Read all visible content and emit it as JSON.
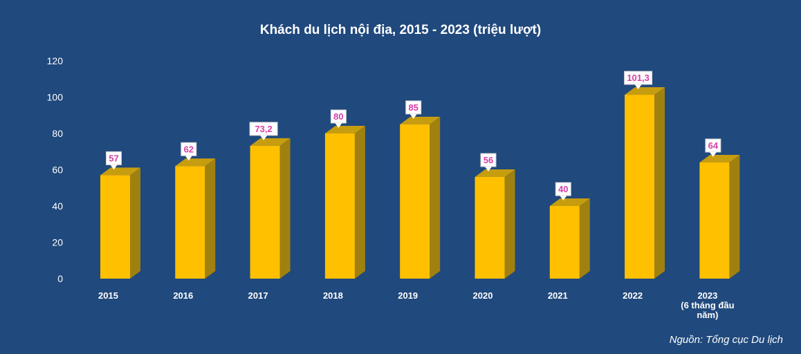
{
  "chart_data": {
    "type": "bar",
    "title": "Khách du lịch nội địa, 2015 - 2023 (triệu lượt)",
    "categories": [
      [
        "2015"
      ],
      [
        "2016"
      ],
      [
        "2017"
      ],
      [
        "2018"
      ],
      [
        "2019"
      ],
      [
        "2020"
      ],
      [
        "2021"
      ],
      [
        "2022"
      ],
      [
        "2023",
        "(6 tháng đầu",
        "năm)"
      ]
    ],
    "values": [
      57,
      62,
      73.2,
      80,
      85,
      56,
      40,
      101.3,
      64
    ],
    "value_labels": [
      "57",
      "62",
      "73,2",
      "80",
      "85",
      "56",
      "40",
      "101,3",
      "64"
    ],
    "yticks": [
      "0",
      "20",
      "40",
      "60",
      "80",
      "100",
      "120"
    ],
    "ylim": [
      0,
      120
    ],
    "xlabel": "",
    "ylabel": "",
    "grid": false,
    "style": "3d-column",
    "source": "Nguồn: Tổng cục Du lịch",
    "colors": {
      "background": "#20497d",
      "bar_front": "#ffc000",
      "bar_side": "#a0810f",
      "bar_top": "#c79d10",
      "label_text": "#d63fa5",
      "label_box": "#ffffff",
      "axis_text": "#ffffff"
    }
  }
}
